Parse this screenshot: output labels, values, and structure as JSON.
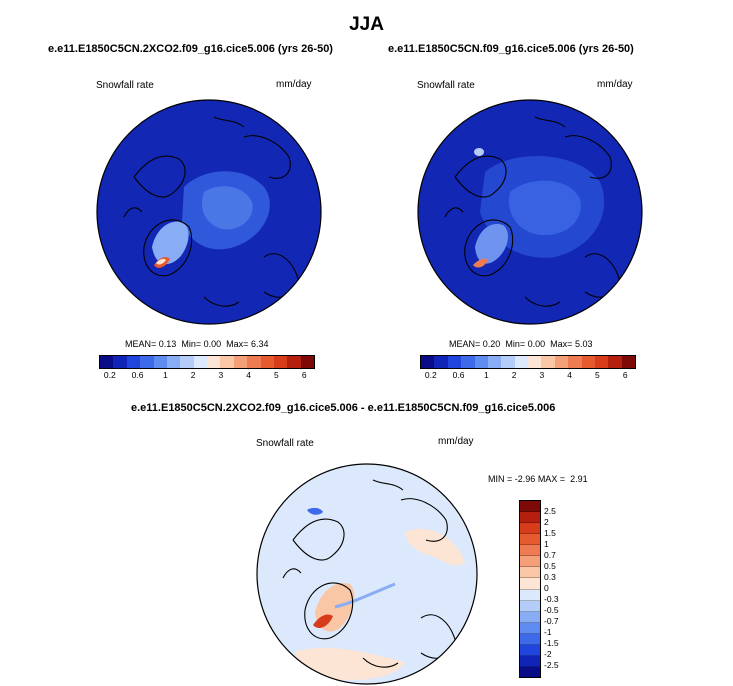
{
  "figure": {
    "title": "JJA",
    "variable": "Snowfall rate",
    "units": "mm/day"
  },
  "chart_data": [
    {
      "type": "heatmap",
      "title": "e.e11.E1850C5CN.2XCO2.f09_g16.cice5.006 (yrs 26-50)",
      "left_label": "Snowfall rate",
      "right_label": "mm/day",
      "projection": "polar stereographic (north)",
      "stats": {
        "mean_label": "MEAN=",
        "mean": "0.13",
        "min_label": "Min=",
        "min": "0.00",
        "max_label": "Max=",
        "max": "6.34"
      },
      "colorbar": {
        "orientation": "horizontal",
        "levels": [
          "0.2",
          "0.6",
          "1",
          "2",
          "3",
          "4",
          "5",
          "6"
        ],
        "colors": [
          "#0a0b87",
          "#1024b8",
          "#1f45dc",
          "#3d6ae8",
          "#5f8cf0",
          "#88adf5",
          "#b3ccf8",
          "#dce8fb",
          "#fce5d5",
          "#f9c6a6",
          "#f3a078",
          "#ee7b52",
          "#e65a30",
          "#d73c1b",
          "#b41f0e",
          "#7d0a06"
        ]
      }
    },
    {
      "type": "heatmap",
      "title": "e.e11.E1850C5CN.f09_g16.cice5.006 (yrs 26-50)",
      "left_label": "Snowfall rate",
      "right_label": "mm/day",
      "projection": "polar stereographic (north)",
      "stats": {
        "mean_label": "MEAN=",
        "mean": "0.20",
        "min_label": "Min=",
        "min": "0.00",
        "max_label": "Max=",
        "max": "5.03"
      },
      "colorbar": {
        "orientation": "horizontal",
        "levels": [
          "0.2",
          "0.6",
          "1",
          "2",
          "3",
          "4",
          "5",
          "6"
        ],
        "colors": [
          "#0a0b87",
          "#1024b8",
          "#1f45dc",
          "#3d6ae8",
          "#5f8cf0",
          "#88adf5",
          "#b3ccf8",
          "#dce8fb",
          "#fce5d5",
          "#f9c6a6",
          "#f3a078",
          "#ee7b52",
          "#e65a30",
          "#d73c1b",
          "#b41f0e",
          "#7d0a06"
        ]
      }
    },
    {
      "type": "heatmap",
      "title": "e.e11.E1850C5CN.2XCO2.f09_g16.cice5.006 - e.e11.E1850C5CN.f09_g16.cice5.006",
      "left_label": "Snowfall rate",
      "right_label": "mm/day",
      "projection": "polar stereographic (north)",
      "stats": {
        "min_label": "MIN =",
        "min": "-2.96",
        "max_label": "MAX =",
        "max": "2.91"
      },
      "colorbar": {
        "orientation": "vertical",
        "levels": [
          "2.5",
          "2",
          "1.5",
          "1",
          "0.7",
          "0.5",
          "0.3",
          "0",
          "-0.3",
          "-0.5",
          "-0.7",
          "-1",
          "-1.5",
          "-2",
          "-2.5"
        ],
        "colors": [
          "#7d0a06",
          "#b41f0e",
          "#d73c1b",
          "#e65a30",
          "#ee7b52",
          "#f3a078",
          "#f9c6a6",
          "#fce5d5",
          "#dce8fb",
          "#b3ccf8",
          "#88adf5",
          "#5f8cf0",
          "#3d6ae8",
          "#1f45dc",
          "#1024b8",
          "#0a0b87"
        ]
      }
    }
  ]
}
